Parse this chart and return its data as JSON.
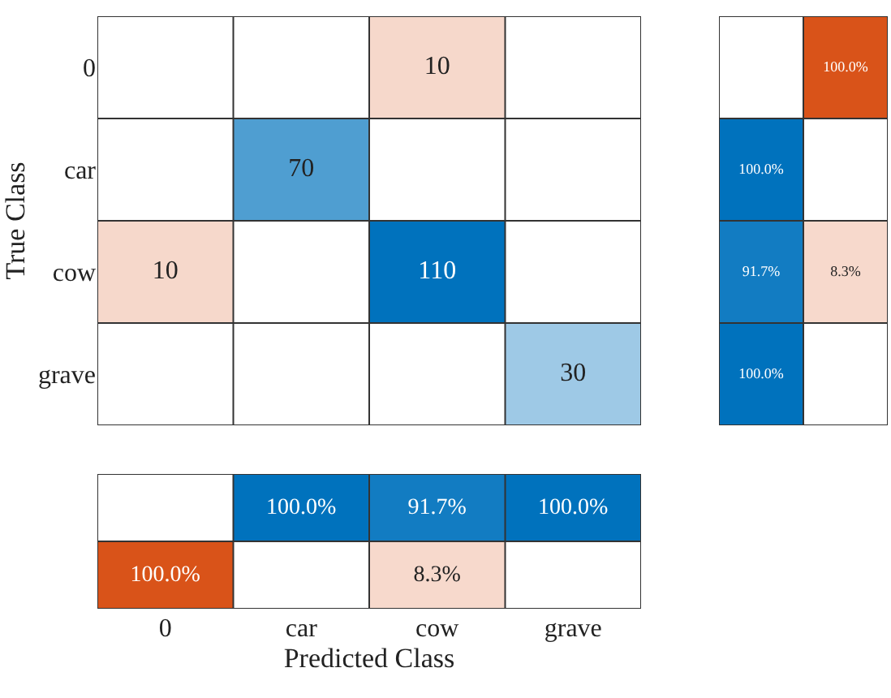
{
  "chart_data": [
    {
      "type": "heatmap",
      "ylabel": "True Class",
      "categories": [
        null,
        null,
        null,
        null
      ],
      "y_categories": [
        "0",
        "car",
        "cow",
        "grave"
      ],
      "tick_labels": "y",
      "cells": [
        [
          null,
          null,
          10,
          null
        ],
        [
          null,
          70,
          null,
          null
        ],
        [
          10,
          null,
          110,
          null
        ],
        [
          null,
          null,
          null,
          30
        ]
      ],
      "data_labels": true
    },
    {
      "type": "heatmap",
      "categories": [
        null,
        null
      ],
      "y_categories": [
        null,
        null,
        null,
        null
      ],
      "tick_labels": false,
      "cells": [
        [
          null,
          100
        ],
        [
          100,
          null
        ],
        [
          91.7,
          8.3
        ],
        [
          100,
          null
        ]
      ],
      "cell_labels": [
        [
          null,
          "100.0%"
        ],
        [
          "100.0%",
          null
        ],
        [
          "91.7%",
          "8.3%"
        ],
        [
          "100.0%",
          null
        ]
      ]
    },
    {
      "type": "heatmap",
      "xlabel": "Predicted Class",
      "categories": [
        "0",
        "car",
        "cow",
        "grave"
      ],
      "y_categories": [
        null,
        null
      ],
      "tick_labels": "x",
      "cells": [
        [
          null,
          100,
          91.7,
          100
        ],
        [
          100,
          null,
          8.3,
          null
        ]
      ],
      "cell_labels": [
        [
          null,
          "100.0%",
          "91.7%",
          "100.0%"
        ],
        [
          "100.0%",
          null,
          "8.3%",
          null
        ]
      ]
    }
  ]
}
